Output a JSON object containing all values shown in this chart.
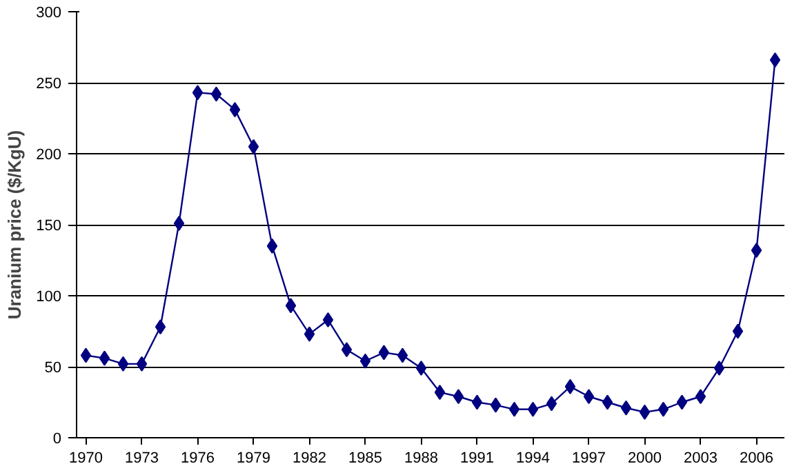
{
  "chart_data": {
    "type": "line",
    "ylabel": "Uranium price ($/KgU)",
    "categories": [
      "1970",
      null,
      null,
      "1973",
      null,
      null,
      "1976",
      null,
      null,
      "1979",
      null,
      null,
      "1982",
      null,
      null,
      "1985",
      null,
      null,
      "1988",
      null,
      null,
      "1991",
      null,
      null,
      "1994",
      null,
      null,
      "1997",
      null,
      null,
      "2000",
      null,
      null,
      "2003",
      null,
      null,
      "2006",
      null
    ],
    "series": [
      {
        "color": "#000080",
        "values": [
          58,
          56,
          52,
          52,
          78,
          151,
          243,
          242,
          231,
          205,
          135,
          93,
          73,
          83,
          62,
          54,
          60,
          58,
          49,
          32,
          29,
          25,
          23,
          20,
          20,
          24,
          36,
          29,
          25,
          21,
          18,
          20,
          25,
          29,
          49,
          75,
          132,
          266
        ]
      }
    ],
    "ylim": [
      0,
      300
    ],
    "yticks": [
      0,
      50,
      100,
      150,
      200,
      250,
      300
    ],
    "grid": "y",
    "marker": "diamond",
    "line_style": "solid"
  }
}
